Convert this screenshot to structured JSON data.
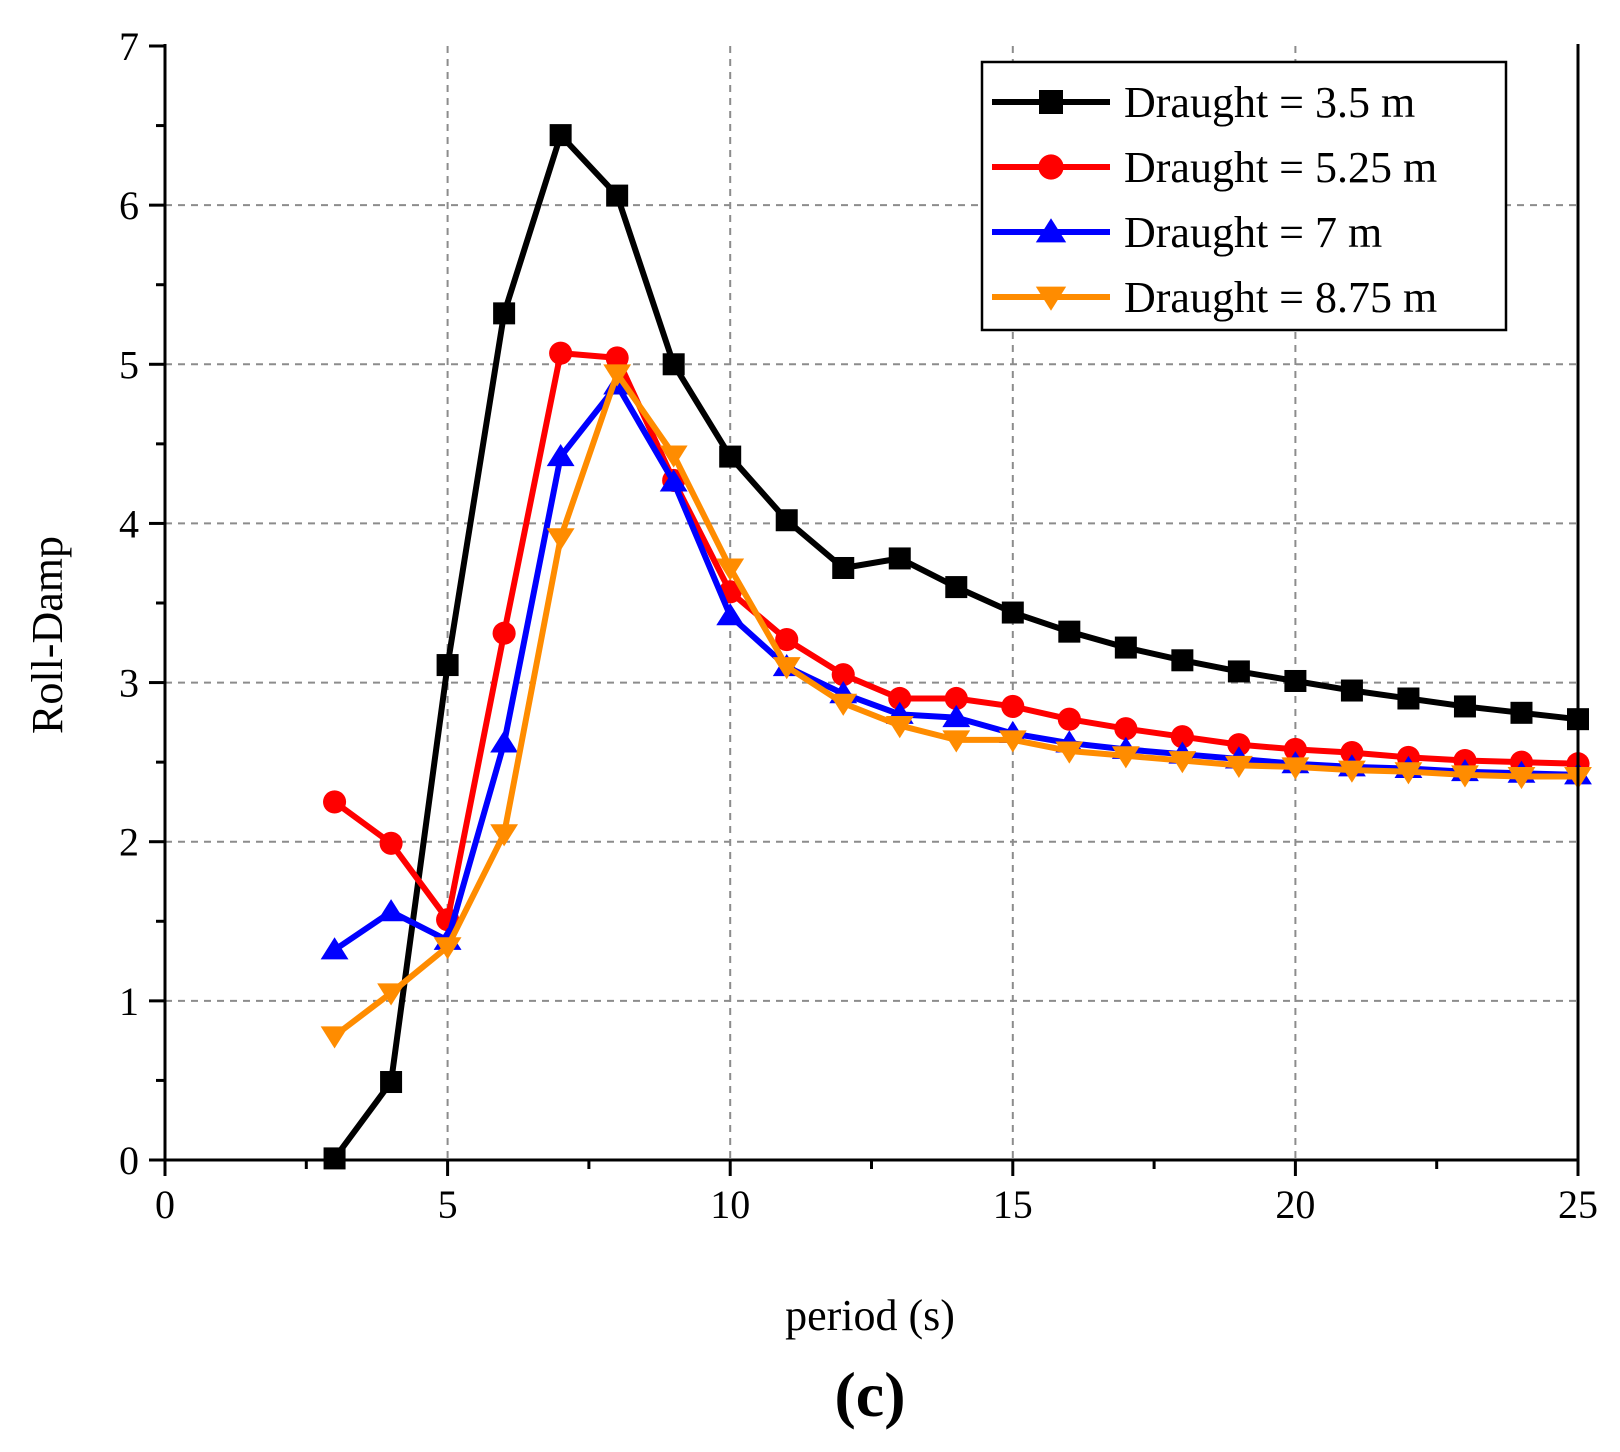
{
  "chart_data": {
    "type": "line",
    "title": "",
    "xlabel": "period (s)",
    "ylabel": "Roll-Damp",
    "xlim": [
      0,
      25
    ],
    "ylim": [
      0,
      7
    ],
    "xticks": [
      0,
      5,
      10,
      15,
      20,
      25
    ],
    "yticks": [
      0,
      1,
      2,
      3,
      4,
      5,
      6,
      7
    ],
    "grid": true,
    "legend_position": "top-right",
    "panel_label": "c",
    "series": [
      {
        "name": "Draught = 3.5 m",
        "color": "#000000",
        "marker": "square",
        "x": [
          3,
          4,
          5,
          6,
          7,
          8,
          9,
          10,
          11,
          12,
          13,
          14,
          15,
          16,
          17,
          18,
          19,
          20,
          21,
          22,
          23,
          24,
          25
        ],
        "y": [
          0.01,
          0.49,
          3.11,
          5.32,
          6.44,
          6.06,
          5.0,
          4.42,
          4.02,
          3.72,
          3.78,
          3.6,
          3.44,
          3.32,
          3.22,
          3.14,
          3.07,
          3.01,
          2.95,
          2.9,
          2.85,
          2.81,
          2.77
        ]
      },
      {
        "name": "Draught = 5.25 m",
        "color": "#ff0000",
        "marker": "circle",
        "x": [
          3,
          4,
          5,
          6,
          7,
          8,
          9,
          10,
          11,
          12,
          13,
          14,
          15,
          16,
          17,
          18,
          19,
          20,
          21,
          22,
          23,
          24,
          25
        ],
        "y": [
          2.25,
          1.99,
          1.51,
          3.31,
          5.07,
          5.04,
          4.27,
          3.57,
          3.27,
          3.05,
          2.9,
          2.9,
          2.85,
          2.77,
          2.71,
          2.66,
          2.61,
          2.58,
          2.56,
          2.53,
          2.51,
          2.5,
          2.49
        ]
      },
      {
        "name": "Draught = 7 m",
        "color": "#0000ff",
        "marker": "triangle-up",
        "x": [
          3,
          4,
          5,
          6,
          7,
          8,
          9,
          10,
          11,
          12,
          13,
          14,
          15,
          16,
          17,
          18,
          19,
          20,
          21,
          22,
          23,
          24,
          25
        ],
        "y": [
          1.32,
          1.56,
          1.38,
          2.62,
          4.42,
          4.87,
          4.26,
          3.42,
          3.1,
          2.93,
          2.8,
          2.78,
          2.68,
          2.62,
          2.58,
          2.55,
          2.52,
          2.49,
          2.47,
          2.46,
          2.44,
          2.43,
          2.42
        ]
      },
      {
        "name": "Draught = 8.75 m",
        "color": "#ff8c00",
        "marker": "triangle-down",
        "x": [
          3,
          4,
          5,
          6,
          7,
          8,
          9,
          10,
          11,
          12,
          13,
          14,
          15,
          16,
          17,
          18,
          19,
          20,
          21,
          22,
          23,
          24,
          25
        ],
        "y": [
          0.78,
          1.05,
          1.34,
          2.05,
          3.91,
          4.94,
          4.43,
          3.72,
          3.1,
          2.87,
          2.73,
          2.64,
          2.64,
          2.57,
          2.54,
          2.51,
          2.48,
          2.47,
          2.45,
          2.44,
          2.42,
          2.41,
          2.41
        ]
      }
    ]
  }
}
